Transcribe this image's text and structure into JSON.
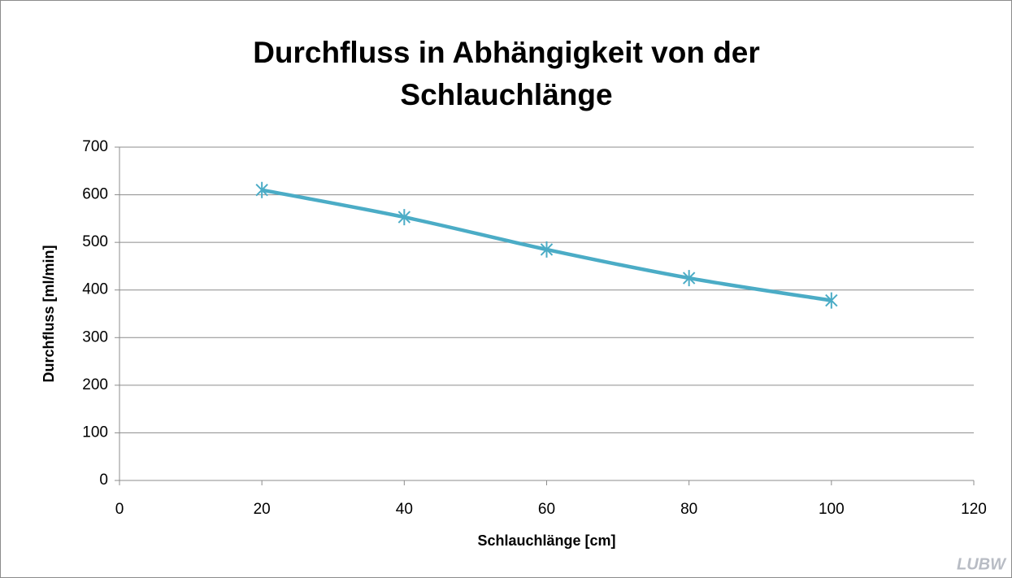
{
  "chart_data": {
    "type": "line",
    "title": "Durchfluss in Abhängigkeit von der Schlauchlänge",
    "x_label": "Schlauchlänge [cm]",
    "y_label": "Durchfluss [ml/min]",
    "x": [
      20,
      40,
      60,
      80,
      100
    ],
    "series": [
      {
        "name": "Durchfluss",
        "color": "#4bacc6",
        "values": [
          610,
          553,
          485,
          425,
          378
        ]
      }
    ],
    "xlim": [
      0,
      120
    ],
    "xticks": [
      0,
      20,
      40,
      60,
      80,
      100,
      120
    ],
    "ylim": [
      0,
      700
    ],
    "yticks": [
      0,
      100,
      200,
      300,
      400,
      500,
      600,
      700
    ],
    "grid": true,
    "watermark": "LUBW"
  }
}
